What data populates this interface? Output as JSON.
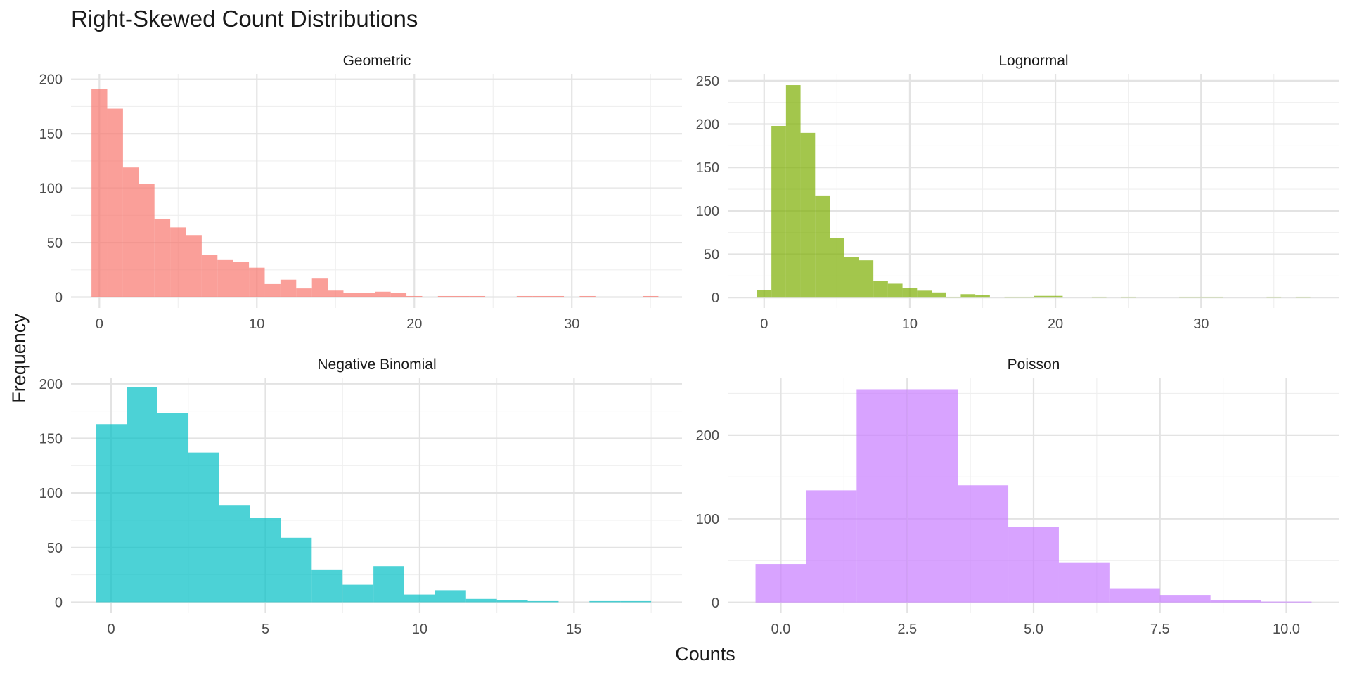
{
  "chart_data": {
    "type": "bar",
    "title": "Right-Skewed Count Distributions",
    "xlabel": "Counts",
    "ylabel": "Frequency",
    "facets": [
      {
        "name": "Geometric",
        "color": "#F8766D",
        "xlim": [
          -1.8,
          37.0
        ],
        "ylim": [
          -10,
          205
        ],
        "x_breaks": [
          0,
          10,
          20,
          30
        ],
        "x_tick_labels": [
          "0",
          "10",
          "20",
          "30"
        ],
        "y_breaks": [
          0,
          50,
          100,
          150,
          200
        ],
        "y_tick_labels": [
          "0",
          "50",
          "100",
          "150",
          "200"
        ],
        "bin_width": 1.0,
        "bin_start": -0.5,
        "counts": [
          191,
          173,
          119,
          104,
          72,
          64,
          57,
          39,
          34,
          32,
          27,
          12,
          16,
          8,
          17,
          6,
          4,
          4,
          5,
          4,
          1,
          0,
          1,
          1,
          1,
          0,
          0,
          1,
          1,
          1,
          0,
          1,
          0,
          0,
          0,
          1
        ]
      },
      {
        "name": "Lognormal",
        "color": "#7CAE00",
        "xlim": [
          -2.5,
          39.5
        ],
        "ylim": [
          -12,
          258
        ],
        "x_breaks": [
          0,
          10,
          20,
          30
        ],
        "x_tick_labels": [
          "0",
          "10",
          "20",
          "30"
        ],
        "y_breaks": [
          0,
          50,
          100,
          150,
          200,
          250
        ],
        "y_tick_labels": [
          "0",
          "50",
          "100",
          "150",
          "200",
          "250"
        ],
        "bin_width": 1.0,
        "bin_start": -0.5,
        "counts": [
          9,
          198,
          245,
          190,
          117,
          69,
          47,
          43,
          19,
          16,
          11,
          8,
          6,
          1,
          4,
          3,
          0,
          1,
          1,
          2,
          2,
          0,
          0,
          1,
          0,
          1,
          0,
          0,
          0,
          1,
          1,
          1,
          0,
          0,
          0,
          1,
          0,
          1
        ]
      },
      {
        "name": "Negative Binomial",
        "color": "#00BFC4",
        "xlim": [
          -1.3,
          18.5
        ],
        "ylim": [
          -10,
          205
        ],
        "x_breaks": [
          0,
          5,
          10,
          15
        ],
        "x_tick_labels": [
          "0",
          "5",
          "10",
          "15"
        ],
        "y_breaks": [
          0,
          50,
          100,
          150,
          200
        ],
        "y_tick_labels": [
          "0",
          "50",
          "100",
          "150",
          "200"
        ],
        "bin_width": 1.0,
        "bin_start": -0.5,
        "counts": [
          163,
          197,
          173,
          137,
          89,
          77,
          59,
          30,
          16,
          33,
          7,
          11,
          3,
          2,
          1,
          0,
          1,
          1
        ]
      },
      {
        "name": "Poisson",
        "color": "#C77CFF",
        "xlim": [
          -1.05,
          11.05
        ],
        "ylim": [
          -12.8,
          268
        ],
        "x_breaks": [
          0,
          2.5,
          5,
          7.5,
          10
        ],
        "x_tick_labels": [
          "0.0",
          "2.5",
          "5.0",
          "7.5",
          "10.0"
        ],
        "y_breaks": [
          0,
          100,
          200
        ],
        "y_tick_labels": [
          "0",
          "100",
          "200"
        ],
        "bin_width": 1.0,
        "bin_start": -0.5,
        "counts": [
          46,
          134,
          255,
          255,
          140,
          90,
          48,
          17,
          9,
          3,
          1
        ]
      }
    ]
  }
}
